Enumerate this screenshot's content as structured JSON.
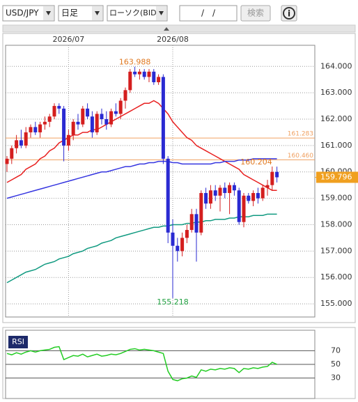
{
  "ui": {
    "symbol": "USD/JPY",
    "period": "日足",
    "chart_kind": "ローソク(BID)",
    "date": "/　/",
    "search": "検索",
    "info": "i"
  },
  "chart_data": [
    {
      "type": "candlestick",
      "categories": [
        null,
        null,
        null,
        null,
        null,
        null,
        null,
        null,
        null,
        null,
        null,
        null,
        null,
        "2026/07",
        null,
        null,
        null,
        null,
        null,
        null,
        null,
        null,
        null,
        null,
        null,
        null,
        null,
        null,
        null,
        null,
        null,
        null,
        null,
        null,
        null,
        "2026/08",
        null,
        null,
        null,
        null,
        null,
        null,
        null,
        null,
        null,
        null,
        null,
        null,
        null,
        null,
        null,
        null,
        null,
        null,
        null,
        null,
        null,
        null
      ],
      "open": [
        160.3,
        160.5,
        160.9,
        161.2,
        161.0,
        161.5,
        161.7,
        161.5,
        161.8,
        161.9,
        162.1,
        162.5,
        162.4,
        161.0,
        161.4,
        161.9,
        161.8,
        162.4,
        162.1,
        161.5,
        162.2,
        162.0,
        161.8,
        162.3,
        162.2,
        162.7,
        163.1,
        163.8,
        163.7,
        163.8,
        163.6,
        163.8,
        163.4,
        163.6,
        160.5,
        157.7,
        157.2,
        157.0,
        157.5,
        157.8,
        158.4,
        157.7,
        159.2,
        158.8,
        159.3,
        159.1,
        159.4,
        159.2,
        159.5,
        159.3,
        158.1,
        159.1,
        158.9,
        159.2,
        159.0,
        159.4,
        159.5,
        160.0
      ],
      "high": [
        160.6,
        161.0,
        161.4,
        161.6,
        161.7,
        161.8,
        161.9,
        161.9,
        162.1,
        162.2,
        162.6,
        162.6,
        162.5,
        161.6,
        162.0,
        162.2,
        162.5,
        162.6,
        162.3,
        162.3,
        162.4,
        162.3,
        162.4,
        162.6,
        162.8,
        163.2,
        163.9,
        163.988,
        163.9,
        163.9,
        163.9,
        163.9,
        163.7,
        163.7,
        160.6,
        158.2,
        157.5,
        157.7,
        158.0,
        158.6,
        158.6,
        159.3,
        159.4,
        159.5,
        159.5,
        159.5,
        159.6,
        159.6,
        159.6,
        159.4,
        159.2,
        159.2,
        159.3,
        159.4,
        159.5,
        159.7,
        160.204,
        160.2
      ],
      "low": [
        160.0,
        160.3,
        160.7,
        160.9,
        160.9,
        161.3,
        161.4,
        161.3,
        161.6,
        161.7,
        162.0,
        162.2,
        160.4,
        160.8,
        161.2,
        161.6,
        161.7,
        162.0,
        161.3,
        161.4,
        161.8,
        161.6,
        161.7,
        162.1,
        162.0,
        162.4,
        163.0,
        163.6,
        163.5,
        163.5,
        163.4,
        163.3,
        163.3,
        160.3,
        157.3,
        155.218,
        156.6,
        156.8,
        157.3,
        157.7,
        156.6,
        157.6,
        158.6,
        158.6,
        158.9,
        158.5,
        159.0,
        158.4,
        159.1,
        158.0,
        157.9,
        158.8,
        158.7,
        158.8,
        158.9,
        159.1,
        159.3,
        159.6
      ],
      "close": [
        160.5,
        160.9,
        161.2,
        161.0,
        161.5,
        161.7,
        161.5,
        161.8,
        161.9,
        162.1,
        162.5,
        162.4,
        161.0,
        161.4,
        161.9,
        161.8,
        162.4,
        162.1,
        161.5,
        162.2,
        162.0,
        161.8,
        162.3,
        162.2,
        162.7,
        163.1,
        163.8,
        163.7,
        163.8,
        163.6,
        163.8,
        163.4,
        163.6,
        160.5,
        157.7,
        157.2,
        157.0,
        157.5,
        157.8,
        158.4,
        157.7,
        159.2,
        158.8,
        159.3,
        159.1,
        159.4,
        159.2,
        159.5,
        159.3,
        158.1,
        159.1,
        158.9,
        159.2,
        159.0,
        159.4,
        159.5,
        160.0,
        159.796
      ],
      "up_color": "#d41e1e",
      "down_color": "#2a2ad2",
      "series": [
        {
          "color": "#e82020",
          "values": [
            159.6,
            159.7,
            159.8,
            159.9,
            160.1,
            160.2,
            160.3,
            160.5,
            160.6,
            160.8,
            160.9,
            161.1,
            161.2,
            161.3,
            161.4,
            161.4,
            161.5,
            161.5,
            161.6,
            161.6,
            161.7,
            161.8,
            161.9,
            162.0,
            162.1,
            162.2,
            162.3,
            162.4,
            162.5,
            162.6,
            162.6,
            162.7,
            162.6,
            162.4,
            162.2,
            161.9,
            161.7,
            161.5,
            161.3,
            161.2,
            161.0,
            160.9,
            160.8,
            160.7,
            160.6,
            160.5,
            160.4,
            160.3,
            160.2,
            160.1,
            159.9,
            159.8,
            159.7,
            159.6,
            159.5,
            159.4,
            159.3,
            159.3
          ]
        },
        {
          "color": "#3535e0",
          "values": [
            159.0,
            159.05,
            159.1,
            159.15,
            159.2,
            159.25,
            159.3,
            159.35,
            159.4,
            159.45,
            159.5,
            159.55,
            159.6,
            159.65,
            159.7,
            159.75,
            159.8,
            159.85,
            159.9,
            159.95,
            160.0,
            160.0,
            160.05,
            160.1,
            160.15,
            160.2,
            160.2,
            160.25,
            160.3,
            160.3,
            160.35,
            160.35,
            160.4,
            160.4,
            160.4,
            160.35,
            160.35,
            160.3,
            160.3,
            160.3,
            160.3,
            160.3,
            160.3,
            160.3,
            160.35,
            160.35,
            160.4,
            160.4,
            160.4,
            160.45,
            160.45,
            160.45,
            160.5,
            160.5,
            160.5,
            160.5,
            160.5,
            160.5
          ]
        },
        {
          "color": "#109a80",
          "values": [
            155.8,
            155.9,
            156.0,
            156.1,
            156.2,
            156.25,
            156.3,
            156.4,
            156.5,
            156.55,
            156.6,
            156.7,
            156.75,
            156.8,
            156.9,
            156.95,
            157.0,
            157.1,
            157.15,
            157.2,
            157.3,
            157.35,
            157.4,
            157.5,
            157.55,
            157.6,
            157.65,
            157.7,
            157.75,
            157.8,
            157.85,
            157.9,
            157.9,
            157.95,
            157.95,
            158.0,
            158.0,
            158.0,
            158.05,
            158.05,
            158.1,
            158.1,
            158.15,
            158.15,
            158.2,
            158.2,
            158.2,
            158.25,
            158.25,
            158.3,
            158.3,
            158.3,
            158.35,
            158.35,
            158.35,
            158.4,
            158.4,
            158.4
          ]
        }
      ],
      "ylim": [
        154.5,
        164.8
      ],
      "yticks": [
        {
          "value": 155,
          "label": "155.000"
        },
        {
          "value": 156,
          "label": "156.000"
        },
        {
          "value": 157,
          "label": "157.000"
        },
        {
          "value": 158,
          "label": "158.000"
        },
        {
          "value": 159,
          "label": "159.000"
        },
        {
          "value": 160,
          "label": "160.000"
        },
        {
          "value": 161,
          "label": "161.000"
        },
        {
          "value": 162,
          "label": "162.000"
        },
        {
          "value": 163,
          "label": "163.000"
        },
        {
          "value": 164,
          "label": "164.000"
        }
      ],
      "price_lines": [
        {
          "value": 161.283,
          "label": "161.283"
        },
        {
          "value": 160.46,
          "label": "160.460"
        }
      ],
      "price_line_color": "#f0a060",
      "current_price": 159.796,
      "current_price_color": "#f0a020",
      "annotations": [
        {
          "value": 163.988,
          "label": "163.988",
          "color": "#e07820"
        },
        {
          "value": 155.218,
          "label": "155.218",
          "color": "#20a040"
        },
        {
          "value": 160.204,
          "label": "160.204",
          "color": "#e07820"
        }
      ],
      "grid": true
    },
    {
      "type": "line",
      "title": "RSI",
      "series": [
        {
          "color": "#22cc22",
          "values": [
            66,
            64,
            67,
            65,
            68,
            70,
            68,
            70,
            71,
            72,
            75,
            76,
            57,
            60,
            63,
            62,
            65,
            61,
            63,
            65,
            62,
            63,
            65,
            64,
            66,
            69,
            72,
            73,
            71,
            72,
            71,
            70,
            68,
            66,
            40,
            28,
            26,
            29,
            30,
            33,
            31,
            42,
            40,
            43,
            42,
            44,
            43,
            45,
            44,
            38,
            44,
            43,
            45,
            44,
            46,
            47,
            53,
            50
          ]
        }
      ],
      "ylim": [
        0,
        100
      ],
      "yticks": [
        30,
        50,
        70
      ]
    }
  ]
}
